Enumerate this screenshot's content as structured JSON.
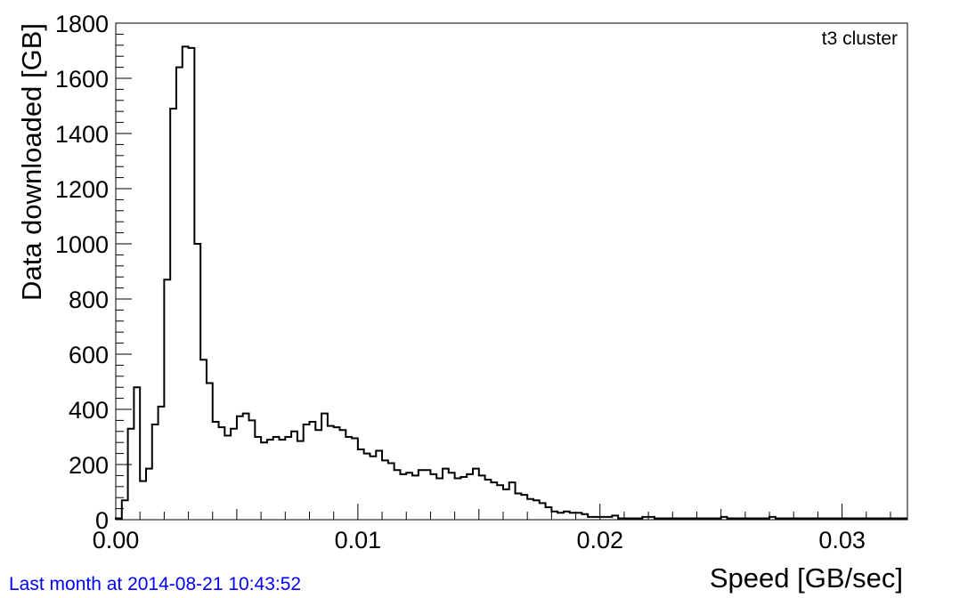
{
  "chart_data": {
    "type": "histogram",
    "title": "",
    "annotation": "t3 cluster",
    "xlabel": "Speed [GB/sec]",
    "ylabel": "Data downloaded [GB]",
    "xlim": [
      0,
      0.0327
    ],
    "ylim": [
      0,
      1800
    ],
    "x_ticks": [
      0,
      0.01,
      0.02,
      0.03
    ],
    "x_tick_labels": [
      "0.00",
      "0.01",
      "0.02",
      "0.03"
    ],
    "y_ticks": [
      0,
      200,
      400,
      600,
      800,
      1000,
      1200,
      1400,
      1600,
      1800
    ],
    "y_tick_labels": [
      "0",
      "200",
      "400",
      "600",
      "800",
      "1000",
      "1200",
      "1400",
      "1600",
      "1800"
    ],
    "bin_width": 0.00025,
    "bin_start": 0.0,
    "values": [
      5,
      70,
      330,
      480,
      140,
      185,
      345,
      410,
      870,
      1490,
      1640,
      1715,
      1710,
      1000,
      580,
      495,
      355,
      335,
      305,
      330,
      375,
      385,
      360,
      300,
      280,
      290,
      300,
      290,
      300,
      320,
      285,
      345,
      355,
      325,
      385,
      340,
      335,
      325,
      300,
      295,
      255,
      240,
      230,
      250,
      215,
      205,
      180,
      165,
      170,
      160,
      180,
      180,
      165,
      150,
      185,
      170,
      150,
      155,
      165,
      185,
      160,
      145,
      135,
      125,
      110,
      135,
      95,
      90,
      75,
      70,
      60,
      45,
      30,
      25,
      30,
      25,
      25,
      20,
      10,
      10,
      10,
      10,
      15,
      5,
      5,
      5,
      5,
      10,
      10,
      5,
      5,
      5,
      5,
      5,
      5,
      5,
      5,
      5,
      5,
      5,
      10,
      5,
      5,
      5,
      5,
      5,
      5,
      5,
      10,
      5,
      5,
      5,
      5,
      5,
      5,
      5,
      5,
      5,
      5,
      5,
      5,
      5,
      5,
      5,
      5,
      5,
      5,
      5,
      5,
      5,
      5
    ],
    "grid": false,
    "line_color": "#000000"
  },
  "footer": {
    "text": "Last month at 2014-08-21 10:43:52",
    "color": "#0000ff"
  }
}
